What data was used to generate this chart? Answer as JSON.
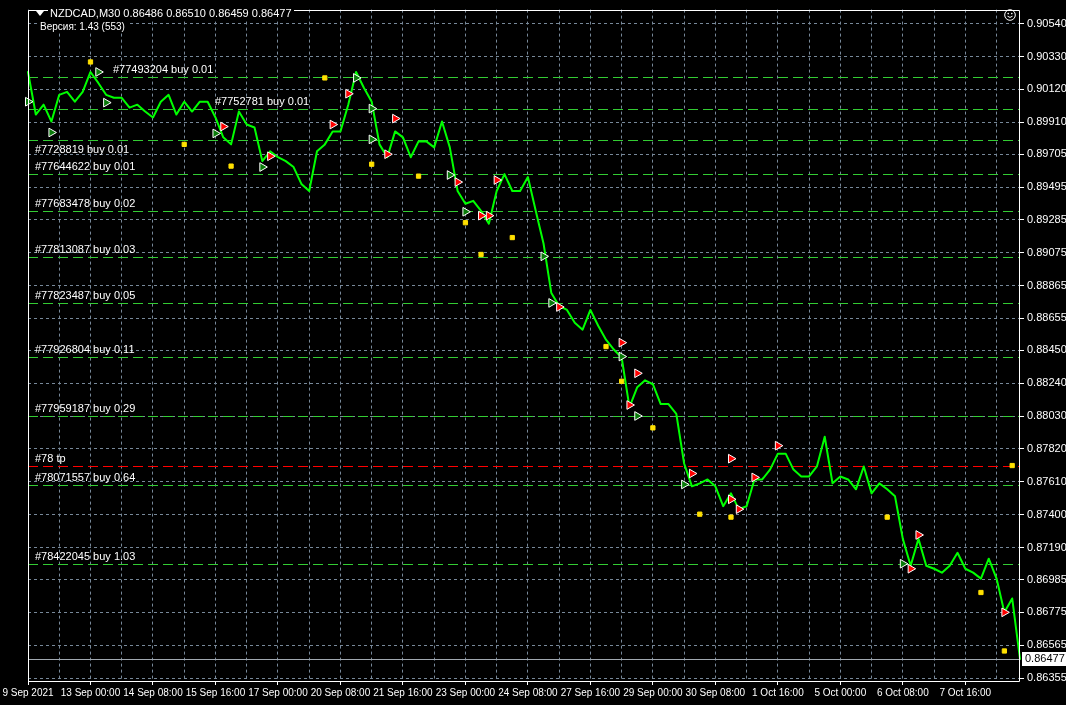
{
  "chart_data": {
    "type": "line",
    "title": "NZDCAD,M30 0.86486 0.86510 0.86459 0.86477",
    "subtitle": "Версия: 1.43 (553)",
    "categories": [
      "9 Sep 2021",
      null,
      null,
      null,
      null,
      null,
      null,
      null,
      "13 Sep 00:00",
      null,
      null,
      null,
      null,
      null,
      null,
      null,
      "14 Sep 08:00",
      null,
      null,
      null,
      null,
      null,
      null,
      null,
      "15 Sep 16:00",
      null,
      null,
      null,
      null,
      null,
      null,
      null,
      "17 Sep 00:00",
      null,
      null,
      null,
      null,
      null,
      null,
      null,
      "20 Sep 08:00",
      null,
      null,
      null,
      null,
      null,
      null,
      null,
      "21 Sep 16:00",
      null,
      null,
      null,
      null,
      null,
      null,
      null,
      "23 Sep 00:00",
      null,
      null,
      null,
      null,
      null,
      null,
      null,
      "24 Sep 08:00",
      null,
      null,
      null,
      null,
      null,
      null,
      null,
      "27 Sep 16:00",
      null,
      null,
      null,
      null,
      null,
      null,
      null,
      "29 Sep 00:00",
      null,
      null,
      null,
      null,
      null,
      null,
      null,
      "30 Sep 08:00",
      null,
      null,
      null,
      null,
      null,
      null,
      null,
      "1 Oct 16:00",
      null,
      null,
      null,
      null,
      null,
      null,
      null,
      "5 Oct 00:00",
      null,
      null,
      null,
      null,
      null,
      null,
      null,
      "6 Oct 08:00",
      null,
      null,
      null,
      null,
      null,
      null,
      null,
      "7 Oct 16:00",
      null,
      null,
      null,
      null,
      null,
      null,
      null
    ],
    "series": [
      {
        "type": "line",
        "color": "#00ff00",
        "marker": "none",
        "values": [
          0.90231,
          0.89959,
          0.90022,
          0.89914,
          0.90085,
          0.90104,
          0.90041,
          0.90104,
          0.90231,
          0.90161,
          0.90085,
          0.90066,
          0.90066,
          0.90003,
          0.90022,
          0.89978,
          0.8994,
          0.90041,
          0.90085,
          0.89959,
          0.90041,
          0.89978,
          0.90041,
          0.90041,
          0.8994,
          0.89813,
          0.89768,
          0.89978,
          0.89895,
          0.89876,
          0.89661,
          0.89724,
          0.89686,
          0.89661,
          0.89623,
          0.89515,
          0.8947,
          0.89724,
          0.89768,
          0.89851,
          0.89851,
          0.90022,
          0.90231,
          0.9013,
          0.90041,
          0.89768,
          0.89686,
          0.89851,
          0.89813,
          0.89686,
          0.89787,
          0.89787,
          0.89749,
          0.89914,
          0.89749,
          0.8947,
          0.89388,
          0.89407,
          0.89343,
          0.89261,
          0.8947,
          0.89578,
          0.8947,
          0.8947,
          0.89559,
          0.89343,
          0.89134,
          0.88817,
          0.88735,
          0.88709,
          0.88627,
          0.88583,
          0.88709,
          0.88608,
          0.88519,
          0.88456,
          0.88405,
          0.88088,
          0.88215,
          0.88259,
          0.88234,
          0.88107,
          0.88107,
          0.88044,
          0.87727,
          0.87581,
          0.876,
          0.87625,
          0.87581,
          0.87454,
          0.87536,
          0.87435,
          0.87454,
          0.87625,
          0.87625,
          0.87688,
          0.8779,
          0.8779,
          0.87688,
          0.87644,
          0.87644,
          0.87708,
          0.87898,
          0.876,
          0.87644,
          0.87625,
          0.87562,
          0.87708,
          0.87536,
          0.876,
          0.87562,
          0.87517,
          0.87245,
          0.87073,
          0.87245,
          0.87073,
          0.87054,
          0.87029,
          0.87073,
          0.87156,
          0.87054,
          0.87029,
          0.86991,
          0.87118,
          0.86991,
          0.86775,
          0.86864,
          0.86477
        ]
      },
      {
        "type": "scatter",
        "color": "#ffe000",
        "marker": "square",
        "values": [
          null,
          null,
          null,
          null,
          null,
          null,
          null,
          null,
          0.90295,
          null,
          null,
          null,
          null,
          null,
          null,
          null,
          null,
          null,
          null,
          null,
          0.89768,
          null,
          null,
          null,
          null,
          null,
          0.89629,
          null,
          null,
          null,
          null,
          null,
          null,
          null,
          null,
          null,
          null,
          null,
          0.90193,
          null,
          null,
          null,
          null,
          null,
          0.89641,
          null,
          null,
          null,
          null,
          null,
          0.89565,
          null,
          null,
          null,
          null,
          null,
          0.89267,
          null,
          0.89064,
          null,
          null,
          null,
          0.89172,
          null,
          null,
          null,
          null,
          null,
          null,
          null,
          null,
          null,
          null,
          null,
          0.88475,
          null,
          0.88253,
          null,
          null,
          null,
          0.87955,
          null,
          null,
          null,
          null,
          null,
          0.87403,
          null,
          null,
          null,
          0.87384,
          null,
          null,
          null,
          null,
          null,
          null,
          null,
          null,
          null,
          null,
          null,
          null,
          null,
          null,
          null,
          null,
          null,
          null,
          null,
          0.87384,
          null,
          null,
          null,
          null,
          null,
          null,
          null,
          null,
          null,
          null,
          null,
          0.86902,
          null,
          null,
          0.86528,
          0.87714,
          null
        ]
      },
      {
        "type": "scatter",
        "color": "#0a7a0a",
        "marker": "triangle",
        "values": [
          0.90041,
          null,
          null,
          0.89844,
          null,
          null,
          null,
          null,
          null,
          0.90231,
          0.90035,
          null,
          null,
          null,
          null,
          null,
          null,
          null,
          null,
          null,
          null,
          null,
          null,
          null,
          0.89838,
          null,
          null,
          null,
          null,
          null,
          0.89623,
          null,
          null,
          null,
          null,
          null,
          null,
          null,
          null,
          null,
          null,
          null,
          0.90193,
          null,
          0.89997,
          null,
          null,
          null,
          null,
          null,
          null,
          null,
          null,
          null,
          0.89572,
          null,
          0.89337,
          null,
          null,
          null,
          null,
          null,
          null,
          null,
          null,
          null,
          0.89052,
          0.88754,
          null,
          null,
          null,
          null,
          null,
          null,
          null,
          null,
          0.88411,
          null,
          0.88031,
          null,
          null,
          null,
          null,
          null,
          0.87593,
          null,
          null,
          null,
          null,
          null,
          null,
          null,
          null,
          null,
          null,
          null,
          null,
          null,
          null,
          null,
          null,
          null,
          null,
          null,
          null,
          null,
          null,
          null,
          null,
          null,
          null,
          null,
          0.87086,
          null,
          null,
          null,
          null,
          null,
          null,
          null,
          null,
          null,
          null,
          null,
          null,
          null,
          null,
          null
        ]
      },
      {
        "type": "scatter",
        "color": "#0a7a0a",
        "marker": "triangle",
        "values": [
          null,
          null,
          null,
          null,
          null,
          null,
          null,
          null,
          null,
          null,
          null,
          null,
          null,
          null,
          null,
          null,
          null,
          null,
          null,
          null,
          null,
          null,
          null,
          null,
          null,
          null,
          null,
          null,
          null,
          null,
          null,
          null,
          null,
          null,
          null,
          null,
          null,
          null,
          null,
          null,
          null,
          null,
          null,
          null,
          0.898,
          null,
          null,
          null,
          null,
          null,
          null,
          null,
          null,
          null,
          null,
          null,
          null,
          null,
          null,
          null,
          null,
          null,
          null,
          null,
          null,
          null,
          null,
          null,
          null,
          null,
          null,
          null,
          null,
          null,
          null,
          null,
          null,
          null,
          null,
          null,
          null,
          null,
          null,
          null,
          null,
          null,
          null,
          null,
          null,
          null,
          null,
          null,
          null,
          null,
          null,
          null,
          null,
          null,
          null,
          null,
          null,
          null,
          null,
          null,
          null,
          null,
          null,
          null,
          null,
          null,
          null,
          null,
          null,
          null,
          null,
          null,
          null,
          null,
          null,
          null,
          null,
          null,
          null,
          null,
          null,
          null,
          null,
          null
        ]
      },
      {
        "type": "scatter",
        "color": "#ff0000",
        "marker": "triangle",
        "values": [
          null,
          null,
          null,
          null,
          null,
          null,
          null,
          null,
          null,
          null,
          null,
          null,
          null,
          null,
          null,
          null,
          null,
          null,
          null,
          null,
          null,
          null,
          null,
          null,
          null,
          0.89882,
          null,
          null,
          null,
          null,
          null,
          0.89692,
          null,
          null,
          null,
          null,
          null,
          null,
          null,
          0.89895,
          null,
          0.90092,
          null,
          null,
          null,
          null,
          0.89705,
          0.89933,
          null,
          null,
          null,
          null,
          null,
          null,
          null,
          0.89527,
          null,
          null,
          0.89312,
          0.89312,
          0.8954,
          null,
          null,
          null,
          null,
          null,
          null,
          null,
          0.88728,
          null,
          null,
          null,
          null,
          null,
          null,
          null,
          0.885,
          0.88101,
          0.88304,
          null,
          null,
          null,
          null,
          null,
          null,
          0.87663,
          null,
          null,
          null,
          null,
          0.87498,
          0.87435,
          null,
          0.87638,
          null,
          null,
          0.87841,
          null,
          null,
          null,
          null,
          null,
          null,
          null,
          null,
          null,
          null,
          null,
          null,
          null,
          null,
          null,
          null,
          0.87054,
          0.8727,
          null,
          null,
          null,
          null,
          null,
          null,
          null,
          null,
          null,
          null,
          0.86775,
          null,
          null
        ]
      },
      {
        "type": "scatter",
        "color": "#ff0000",
        "marker": "triangle",
        "values": [
          null,
          null,
          null,
          null,
          null,
          null,
          null,
          null,
          null,
          null,
          null,
          null,
          null,
          null,
          null,
          null,
          null,
          null,
          null,
          null,
          null,
          null,
          null,
          null,
          null,
          null,
          null,
          null,
          null,
          null,
          null,
          null,
          null,
          null,
          null,
          null,
          null,
          null,
          null,
          null,
          null,
          null,
          null,
          null,
          null,
          null,
          null,
          null,
          null,
          null,
          null,
          null,
          null,
          null,
          null,
          null,
          null,
          null,
          null,
          null,
          null,
          null,
          null,
          null,
          null,
          null,
          null,
          null,
          null,
          null,
          null,
          null,
          null,
          null,
          null,
          null,
          null,
          null,
          null,
          null,
          null,
          null,
          null,
          null,
          null,
          null,
          null,
          null,
          null,
          null,
          0.87758,
          null,
          null,
          null,
          null,
          null,
          null,
          null,
          null,
          null,
          null,
          null,
          null,
          null,
          null,
          null,
          null,
          null,
          null,
          null,
          null,
          null,
          null,
          null,
          null,
          null,
          null,
          null,
          null,
          null,
          null,
          null,
          null,
          null,
          null,
          null,
          null,
          null
        ]
      }
    ],
    "ylim": [
      0.86336,
      0.9063
    ],
    "yticks": [
      {
        "value": 0.9054,
        "label": "0.90540"
      },
      {
        "value": 0.9033,
        "label": "0.90330"
      },
      {
        "value": 0.9012,
        "label": "0.90120"
      },
      {
        "value": 0.8991,
        "label": "0.89910"
      },
      0.89705,
      0.89495,
      0.89285,
      0.89075,
      0.88865,
      0.88655,
      {
        "value": 0.8845,
        "label": "0.88450"
      },
      {
        "value": 0.8824,
        "label": "0.88240"
      },
      {
        "value": 0.8803,
        "label": "0.88030"
      },
      {
        "value": 0.8782,
        "label": "0.87820"
      },
      {
        "value": 0.8761,
        "label": "0.87610"
      },
      {
        "value": 0.874,
        "label": "0.87400"
      },
      {
        "value": 0.8719,
        "label": "0.87190"
      },
      0.86985,
      0.86775,
      0.86565,
      0.86355
    ],
    "grid": true,
    "ref_lines": [
      {
        "axis": "y",
        "value": 0.90198,
        "label": "#77493204 buy 0.01",
        "color": "#33cc33",
        "line_style": "dashed"
      },
      {
        "axis": "y",
        "value": 0.89995,
        "label": "#7752781 buy 0.01",
        "color": "#33cc33",
        "line_style": "dashed"
      },
      {
        "axis": "y",
        "value": 0.89796,
        "label": "#7728819 buy 0.01",
        "color": "#33cc33",
        "line_style": "dashed"
      },
      {
        "axis": "y",
        "value": 0.89576,
        "label": "#77644622 buy 0.01",
        "color": "#33cc33",
        "line_style": "dashed"
      },
      {
        "axis": "y",
        "value": 0.89342,
        "label": "#77683478 buy 0.02",
        "color": "#33cc33",
        "line_style": "dashed"
      },
      {
        "axis": "y",
        "value": 0.8905,
        "label": "#77813087 buy 0.03",
        "color": "#33cc33",
        "line_style": "dashed"
      },
      {
        "axis": "y",
        "value": 0.88752,
        "label": "#77823487 buy 0.05",
        "color": "#33cc33",
        "line_style": "dashed"
      },
      {
        "axis": "y",
        "value": 0.8841,
        "label": "#77926804 buy 0.11",
        "color": "#33cc33",
        "line_style": "dashed"
      },
      {
        "axis": "y",
        "value": 0.88029,
        "label": "#77959187 buy 0.29",
        "color": "#33cc33",
        "line_style": "dashed"
      },
      {
        "axis": "y",
        "value": 0.87714,
        "label": "#78 tp",
        "color": "#ff0000",
        "line_style": "dashed"
      },
      {
        "axis": "y",
        "value": 0.87592,
        "label": "#78071557 buy 0.64",
        "color": "#33cc33",
        "line_style": "dashed"
      },
      {
        "axis": "y",
        "value": 0.87084,
        "label": "#78422045 buy 1.03",
        "color": "#33cc33",
        "line_style": "dashed"
      },
      {
        "axis": "y",
        "value": 0.86477,
        "label": "0.86477",
        "color": "#a0a8b0",
        "line_style": "solid"
      }
    ]
  }
}
